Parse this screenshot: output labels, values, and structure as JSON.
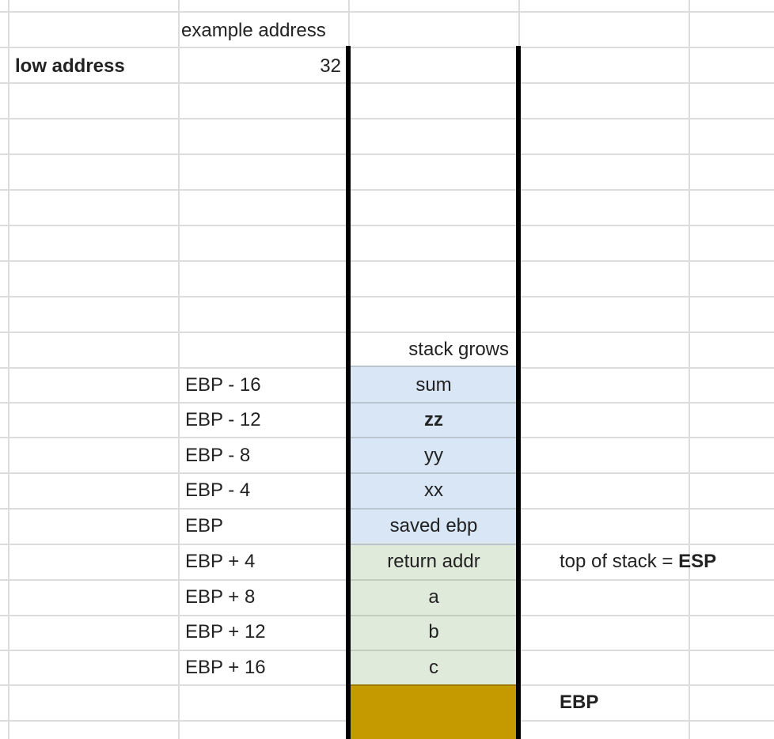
{
  "header": {
    "example_address_label": "example address",
    "low_address_label": "low address",
    "low_address_value": "32"
  },
  "stack_grows_label": "stack grows",
  "stack_cells": [
    {
      "offset": "EBP - 16",
      "label": "sum",
      "region": "locals"
    },
    {
      "offset": "EBP - 12",
      "label": "zz",
      "region": "locals"
    },
    {
      "offset": "EBP - 8",
      "label": "yy",
      "region": "locals"
    },
    {
      "offset": "EBP - 4",
      "label": "xx",
      "region": "locals"
    },
    {
      "offset": "EBP",
      "label": "saved ebp",
      "region": "locals"
    },
    {
      "offset": "EBP + 4",
      "label": "return addr",
      "region": "args"
    },
    {
      "offset": "EBP + 8",
      "label": "a",
      "region": "args"
    },
    {
      "offset": "EBP + 12",
      "label": "b",
      "region": "args"
    },
    {
      "offset": "EBP + 16",
      "label": "c",
      "region": "args"
    }
  ],
  "annotations": {
    "top_of_stack_prefix": "top of stack = ",
    "top_of_stack_reg": "ESP",
    "ebp_marker": "EBP"
  },
  "colors": {
    "locals_fill": "#d9e6f5",
    "args_fill": "#dfeada",
    "caller_frame_fill": "#c59a00",
    "grid": "#dcdcdc",
    "stack_border": "#000000"
  }
}
